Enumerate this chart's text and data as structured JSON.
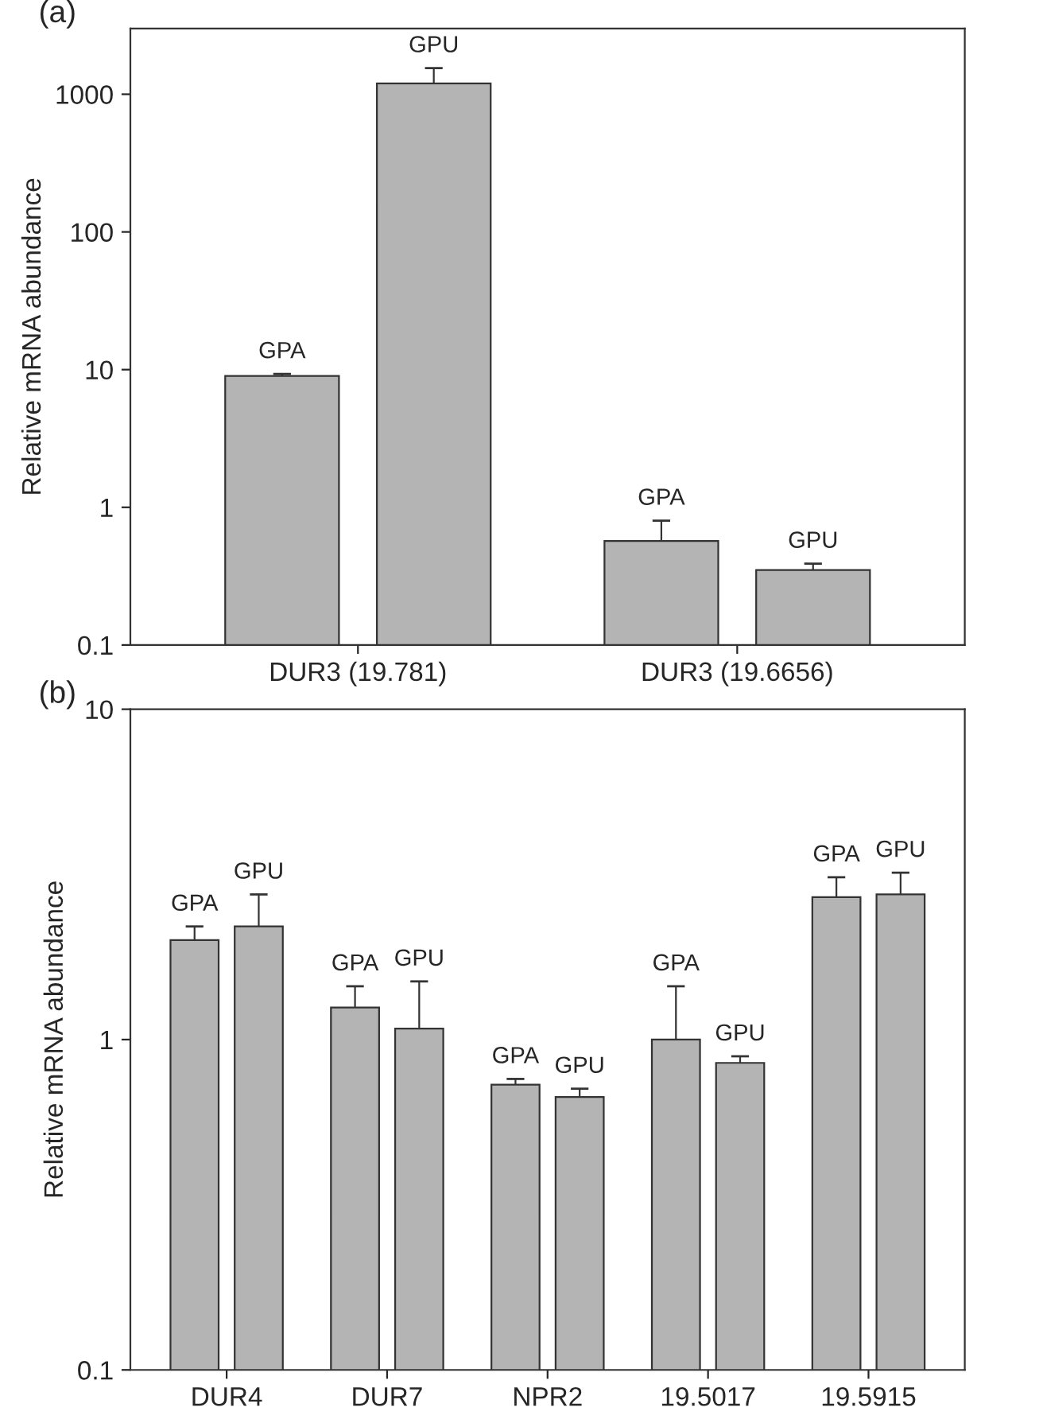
{
  "chart_data": [
    {
      "type": "bar",
      "annotations": [
        "(a)"
      ],
      "ylabel": "Relative mRNA abundance",
      "categories": [
        "DUR3 (19.781)",
        "DUR3 (19.6656)"
      ],
      "log": true,
      "ylim": [
        0.1,
        3000
      ],
      "yticks": [
        0.1,
        1,
        10,
        100,
        1000
      ],
      "grid": false,
      "legend": false,
      "series": [
        {
          "name": "GPA",
          "color": "#b4b4b4",
          "values": [
            9,
            0.57
          ],
          "errors": [
            0.3,
            0.23
          ]
        },
        {
          "name": "GPU",
          "color": "#b4b4b4",
          "values": [
            1200,
            0.35
          ],
          "errors": [
            350,
            0.04
          ]
        }
      ]
    },
    {
      "type": "bar",
      "annotations": [
        "(b)"
      ],
      "ylabel": "Relative mRNA abundance",
      "categories": [
        "DUR4",
        "DUR7",
        "NPR2",
        "19.5017",
        "19.5915"
      ],
      "log": true,
      "ylim": [
        0.1,
        10
      ],
      "yticks": [
        0.1,
        1,
        10
      ],
      "grid": false,
      "legend": false,
      "series": [
        {
          "name": "GPA",
          "color": "#b4b4b4",
          "values": [
            2.0,
            1.25,
            0.73,
            1.0,
            2.7
          ],
          "errors": [
            0.2,
            0.2,
            0.03,
            0.45,
            0.4
          ]
        },
        {
          "name": "GPU",
          "color": "#b4b4b4",
          "values": [
            2.2,
            1.08,
            0.67,
            0.85,
            2.75
          ],
          "errors": [
            0.55,
            0.42,
            0.04,
            0.04,
            0.45
          ]
        }
      ]
    }
  ]
}
